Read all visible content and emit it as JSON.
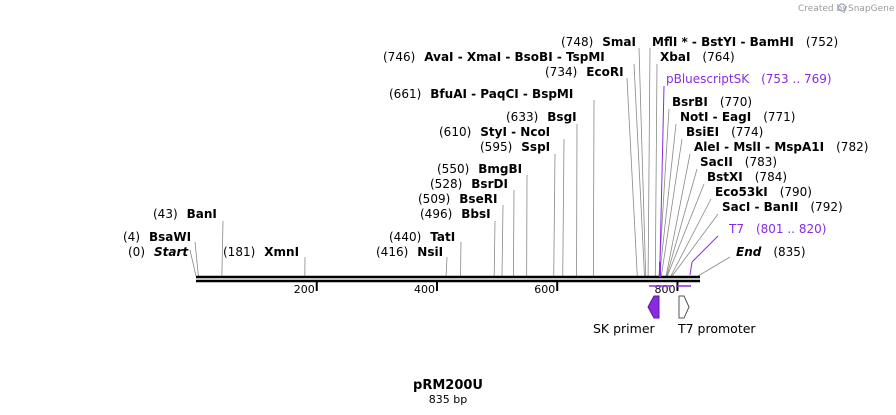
{
  "credit": {
    "prefix": "Created by",
    "brand": "SnapGene"
  },
  "plasmid": {
    "name": "pRM200U",
    "size": "835 bp",
    "length": 835
  },
  "ticks": [
    "200",
    "400",
    "600",
    "800"
  ],
  "tick_values": [
    200,
    400,
    600,
    800
  ],
  "sites": [
    {
      "id": "start",
      "pos": 0
    },
    {
      "id": "bsawi",
      "pos": 4
    },
    {
      "id": "bani",
      "pos": 43
    },
    {
      "id": "xmni",
      "pos": 181
    },
    {
      "id": "nsii",
      "pos": 416
    },
    {
      "id": "tati",
      "pos": 440
    },
    {
      "id": "bbsi",
      "pos": 496
    },
    {
      "id": "bseri",
      "pos": 509
    },
    {
      "id": "bsrdi",
      "pos": 528
    },
    {
      "id": "bmgbi",
      "pos": 550
    },
    {
      "id": "sspi",
      "pos": 595
    },
    {
      "id": "ncoi",
      "pos": 610
    },
    {
      "id": "bsgi",
      "pos": 633
    },
    {
      "id": "bfuai",
      "pos": 661
    },
    {
      "id": "ecori",
      "pos": 734
    },
    {
      "id": "avai",
      "pos": 746
    },
    {
      "id": "smai",
      "pos": 748
    },
    {
      "id": "mfli",
      "pos": 752
    },
    {
      "id": "xbai",
      "pos": 764
    },
    {
      "id": "bsrbi",
      "pos": 770
    },
    {
      "id": "noti",
      "pos": 771
    },
    {
      "id": "bsiei",
      "pos": 774
    },
    {
      "id": "alei",
      "pos": 782
    },
    {
      "id": "sacii",
      "pos": 783
    },
    {
      "id": "bstxi",
      "pos": 784
    },
    {
      "id": "eco53ki",
      "pos": 790
    },
    {
      "id": "saci",
      "pos": 792
    },
    {
      "id": "end",
      "pos": 835
    }
  ],
  "labels": {
    "start": {
      "pos": "(0)",
      "name": "Start"
    },
    "bsawi": {
      "pos": "(4)",
      "name": "BsaWI"
    },
    "bani": {
      "pos": "(43)",
      "name": "BanI"
    },
    "xmni": {
      "pos": "(181)",
      "name": "XmnI"
    },
    "nsii": {
      "pos": "(416)",
      "name": "NsiI"
    },
    "tati": {
      "pos": "(440)",
      "name": "TatI"
    },
    "bbsi": {
      "pos": "(496)",
      "name": "BbsI"
    },
    "bseri": {
      "pos": "(509)",
      "name": "BseRI"
    },
    "bsrdi": {
      "pos": "(528)",
      "name": "BsrDI"
    },
    "bmgbi": {
      "pos": "(550)",
      "name": "BmgBI"
    },
    "sspi": {
      "pos": "(595)",
      "name": "SspI"
    },
    "ncoi": {
      "pos": "(610)",
      "name": "StyI  -  NcoI"
    },
    "bsgi": {
      "pos": "(633)",
      "name": "BsgI"
    },
    "bfuai": {
      "pos": "(661)",
      "name": "BfuAI  -  PaqCI  -  BspMI"
    },
    "ecori": {
      "pos": "(734)",
      "name": "EcoRI"
    },
    "avai": {
      "pos": "(746)",
      "name": "AvaI  -  XmaI  -  BsoBI  -  TspMI"
    },
    "smai": {
      "pos": "(748)",
      "name": "SmaI"
    },
    "mfli": {
      "name": "MflI *  -  BstYI  -  BamHI",
      "pos": "(752)"
    },
    "xbai": {
      "name": "XbaI",
      "pos": "(764)"
    },
    "pbluescript": {
      "name": "pBluescriptSK",
      "pos": "(753 .. 769)"
    },
    "bsrbi": {
      "name": "BsrBI",
      "pos": "(770)"
    },
    "noti": {
      "name": "NotI  -  EagI",
      "pos": "(771)"
    },
    "bsiei": {
      "name": "BsiEI",
      "pos": "(774)"
    },
    "alei": {
      "name": "AleI  -  MslI  -  MspA1I",
      "pos": "(782)"
    },
    "sacii": {
      "name": "SacII",
      "pos": "(783)"
    },
    "bstxi": {
      "name": "BstXI",
      "pos": "(784)"
    },
    "eco53ki": {
      "name": "Eco53kI",
      "pos": "(790)"
    },
    "saci": {
      "name": "SacI  -  BanII",
      "pos": "(792)"
    },
    "t7": {
      "name": "T7",
      "pos": "(801 .. 820)"
    },
    "end": {
      "name": "End",
      "pos": "(835)"
    }
  },
  "features": {
    "sk_primer": "SK primer",
    "t7_promoter": "T7 promoter"
  },
  "colors": {
    "misc_feature": "#8a2be2",
    "primer_fill": "#8a2be2",
    "promoter_fill": "#ffffff"
  }
}
